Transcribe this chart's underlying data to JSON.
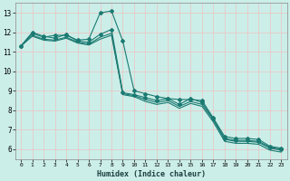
{
  "xlabel": "Humidex (Indice chaleur)",
  "bg_color": "#cceee8",
  "grid_color": "#e8c8c8",
  "line_color": "#1a7a72",
  "xlim": [
    -0.5,
    23.5
  ],
  "ylim": [
    5.5,
    13.5
  ],
  "xticks": [
    0,
    1,
    2,
    3,
    4,
    5,
    6,
    7,
    8,
    9,
    10,
    11,
    12,
    13,
    14,
    15,
    16,
    17,
    18,
    19,
    20,
    21,
    22,
    23
  ],
  "yticks": [
    6,
    7,
    8,
    9,
    10,
    11,
    12,
    13
  ],
  "series": [
    {
      "x": [
        0,
        1,
        2,
        3,
        4,
        5,
        6,
        7,
        8,
        9,
        10,
        11,
        12,
        13,
        14,
        15,
        16,
        17,
        18,
        19,
        20,
        21,
        22,
        23
      ],
      "y": [
        11.3,
        11.95,
        11.75,
        11.85,
        11.85,
        11.6,
        11.65,
        13.0,
        13.1,
        11.55,
        9.0,
        8.85,
        8.7,
        8.6,
        8.55,
        8.55,
        8.5,
        7.6,
        6.65,
        6.55,
        6.55,
        6.5,
        6.15,
        6.05
      ],
      "markers": true
    },
    {
      "x": [
        0,
        1,
        2,
        3,
        4,
        5,
        6,
        7,
        8,
        9,
        10,
        11,
        12,
        13,
        14,
        15,
        16,
        17,
        18,
        19,
        20,
        21,
        22,
        23
      ],
      "y": [
        11.3,
        12.0,
        11.8,
        11.7,
        11.9,
        11.55,
        11.5,
        11.9,
        12.15,
        8.9,
        8.8,
        8.65,
        8.5,
        8.6,
        8.3,
        8.6,
        8.4,
        7.55,
        6.55,
        6.45,
        6.45,
        6.4,
        6.1,
        6.0
      ],
      "markers": true
    },
    {
      "x": [
        0,
        1,
        2,
        3,
        4,
        5,
        6,
        7,
        8,
        9,
        10,
        11,
        12,
        13,
        14,
        15,
        16,
        17,
        18,
        19,
        20,
        21,
        22,
        23
      ],
      "y": [
        11.3,
        11.85,
        11.65,
        11.6,
        11.75,
        11.5,
        11.4,
        11.75,
        11.95,
        8.85,
        8.75,
        8.55,
        8.4,
        8.5,
        8.2,
        8.45,
        8.3,
        7.5,
        6.5,
        6.4,
        6.4,
        6.35,
        6.05,
        5.95
      ],
      "markers": false
    },
    {
      "x": [
        0,
        1,
        2,
        3,
        4,
        5,
        6,
        7,
        8,
        9,
        10,
        11,
        12,
        13,
        14,
        15,
        16,
        17,
        18,
        19,
        20,
        21,
        22,
        23
      ],
      "y": [
        11.3,
        11.8,
        11.6,
        11.55,
        11.7,
        11.45,
        11.35,
        11.65,
        11.85,
        8.8,
        8.7,
        8.45,
        8.3,
        8.4,
        8.1,
        8.35,
        8.2,
        7.4,
        6.4,
        6.3,
        6.3,
        6.25,
        5.95,
        5.85
      ],
      "markers": false
    }
  ]
}
